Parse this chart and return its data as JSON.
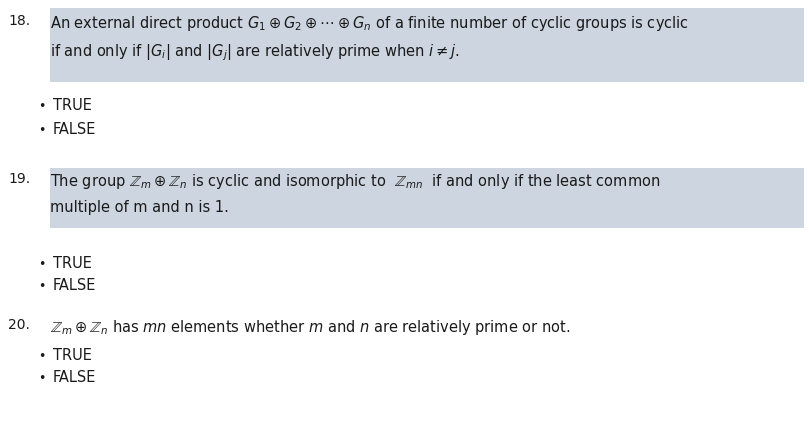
{
  "bg_color": "#ffffff",
  "highlight_color": "#cdd5e0",
  "text_color": "#1a1a1a",
  "q18_num": "18.",
  "q18_line1": "An external direct product $G_1\\oplus G_2 \\oplus \\cdots \\oplus G_n$ of a finite number of cyclic groups is cyclic",
  "q18_line2": "if and only if $|G_i|$ and $|G_j|$ are relatively prime when $i \\neq j$.",
  "q19_num": "19.",
  "q19_line1": "The group $\\mathbb{Z}_m\\oplus \\mathbb{Z}_n$ is cyclic and isomorphic to  $\\mathbb{Z}_{mn}$  if and only if the least common",
  "q19_line2": "multiple of m and n is 1.",
  "q20_num": "20.",
  "q20_line1": "$\\mathbb{Z}_m\\oplus \\mathbb{Z}_n$ has $mn$ elements whether $m$ and $n$ are relatively prime or not.",
  "bullet": "•",
  "true_label": "TRUE",
  "false_label": "FALSE",
  "fontsize_main": 10.5,
  "fontsize_num": 10.0,
  "fontsize_bullet": 9.0,
  "fig_width": 8.09,
  "fig_height": 4.21,
  "dpi": 100
}
